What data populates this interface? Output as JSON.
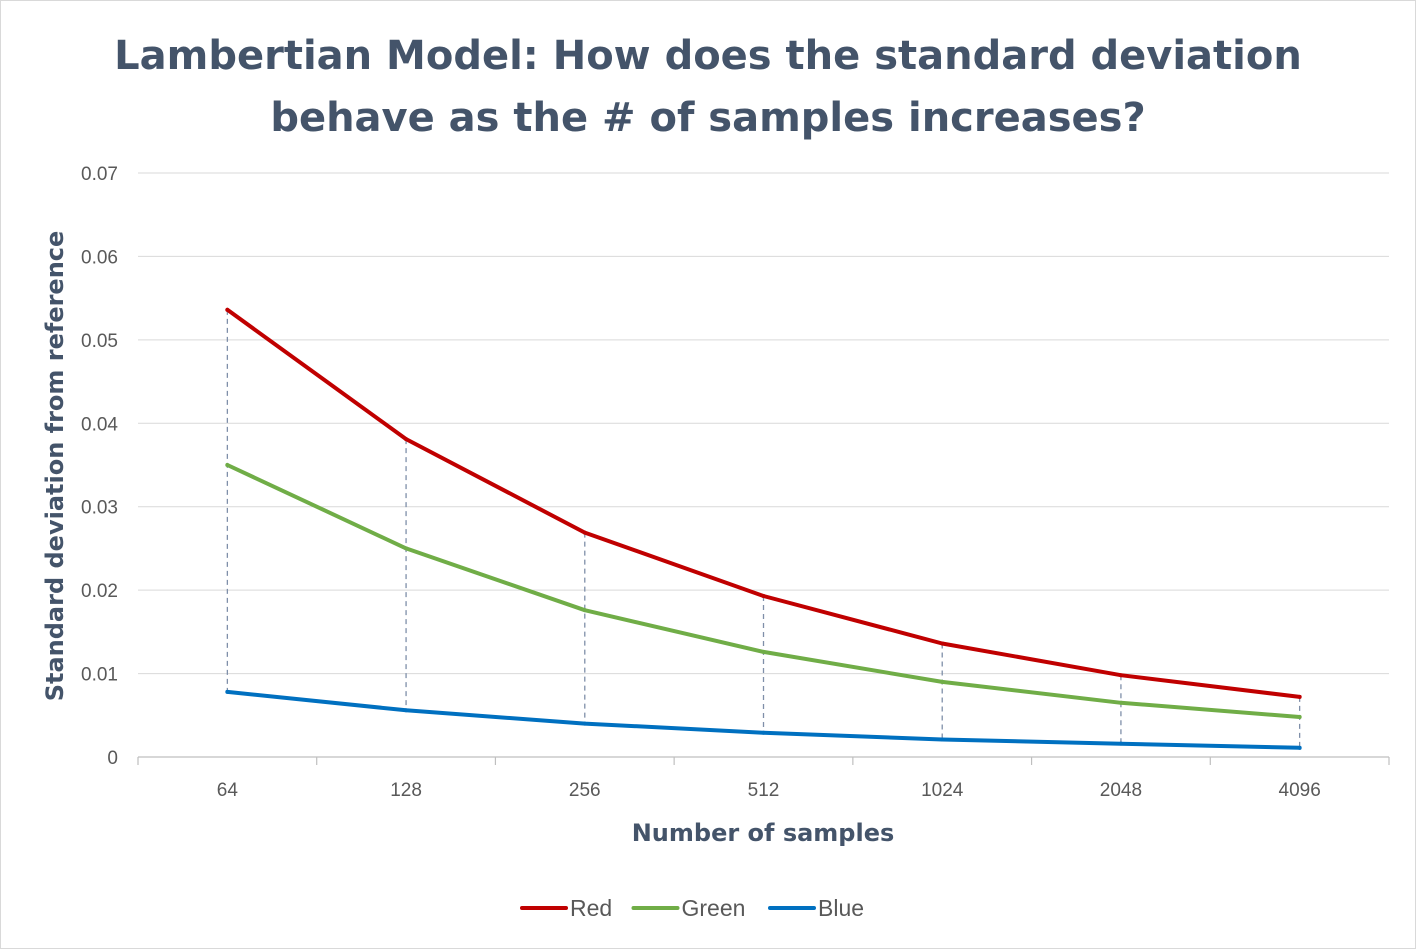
{
  "chart_data": {
    "type": "line",
    "title_lines": [
      "Lambertian Model: How does the standard deviation",
      "behave as the # of samples increases?"
    ],
    "xlabel": "Number of samples",
    "ylabel": "Standard deviation from reference",
    "categories": [
      "64",
      "128",
      "256",
      "512",
      "1024",
      "2048",
      "4096"
    ],
    "yticks": [
      "0",
      "0.01",
      "0.02",
      "0.03",
      "0.04",
      "0.05",
      "0.06",
      "0.07"
    ],
    "ylim": [
      0,
      0.07
    ],
    "grid": true,
    "drop_lines": true,
    "legend_position": "bottom",
    "series": [
      {
        "name": "Red",
        "color": "#c00000",
        "values": [
          0.0536,
          0.0381,
          0.0269,
          0.0193,
          0.0136,
          0.0098,
          0.0072
        ]
      },
      {
        "name": "Green",
        "color": "#70ad47",
        "values": [
          0.035,
          0.025,
          0.0176,
          0.0126,
          0.009,
          0.0065,
          0.0048
        ]
      },
      {
        "name": "Blue",
        "color": "#0070c0",
        "values": [
          0.0078,
          0.0056,
          0.004,
          0.0029,
          0.0021,
          0.0016,
          0.0011
        ]
      }
    ]
  }
}
